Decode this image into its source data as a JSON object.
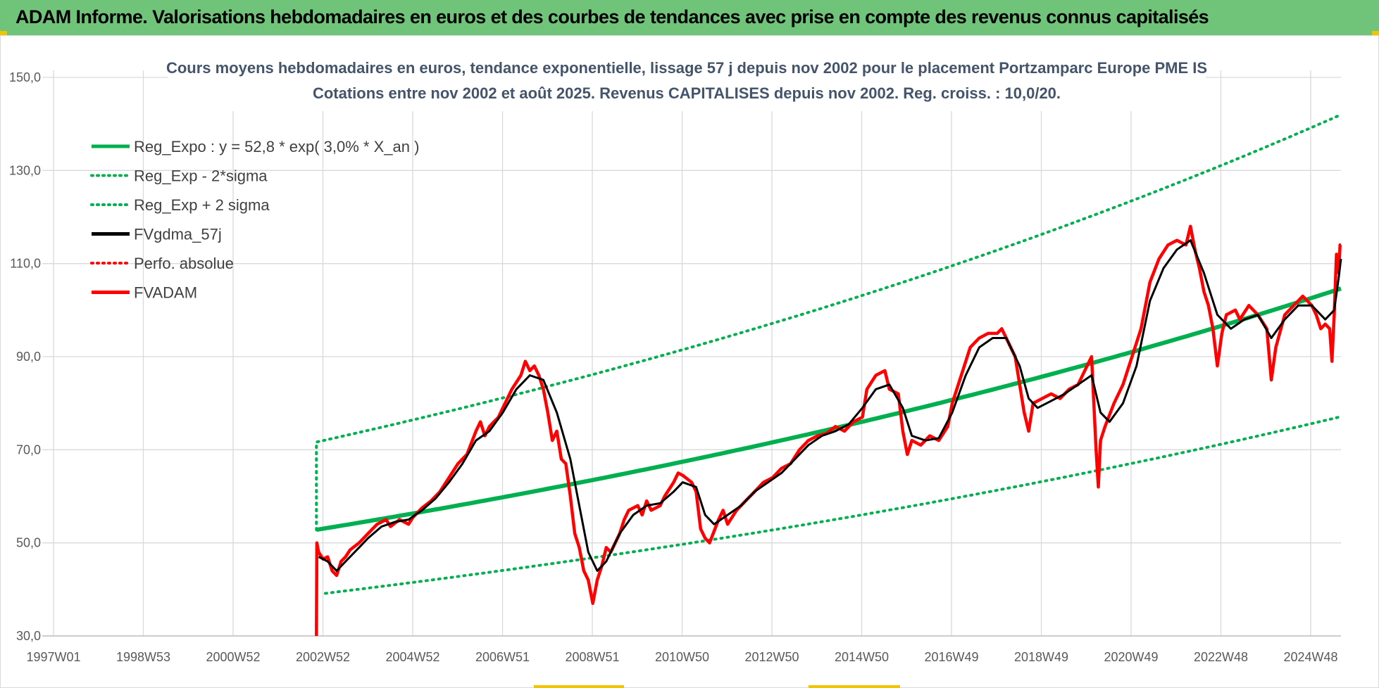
{
  "header": {
    "title": "ADAM Informe. Valorisations hebdomadaires en euros et des courbes de tendances avec prise en compte des revenus connus capitalisés"
  },
  "colors": {
    "banner": "#70c47a",
    "reg_expo": "#00b050",
    "fvgdma": "#000000",
    "fvadam": "#ff0000",
    "perfo": "#ff0000",
    "grid": "#d9d9d9"
  },
  "chart_data": {
    "type": "line",
    "title": [
      "Cours moyens hebdomadaires en euros, tendance exponentielle, lissage 57 j depuis nov 2002  pour le placement Portzamparc Europe PME IS",
      "Cotations entre nov 2002 et août 2025.  Revenus CAPITALISES depuis nov 2002. Reg. croiss. : 10,0/20."
    ],
    "x_tick_labels": [
      "1997W01",
      "1998W53",
      "2000W52",
      "2002W52",
      "2004W52",
      "2006W51",
      "2008W51",
      "2010W50",
      "2012W50",
      "2014W50",
      "2016W49",
      "2018W49",
      "2020W49",
      "2022W48",
      "2024W48"
    ],
    "x_range": [
      1997.0,
      2025.65
    ],
    "y_tick_labels": [
      "30,0",
      "50,0",
      "70,0",
      "90,0",
      "110,0",
      "130,0",
      "150,0"
    ],
    "ylim": [
      30,
      150
    ],
    "grid": true,
    "legend_position": "top-left",
    "legend": [
      {
        "label": "Reg_Expo : y = 52,8 * exp( 3,0% *  X_an )",
        "color": "#00b050",
        "style": "solid"
      },
      {
        "label": "Reg_Exp - 2*sigma",
        "color": "#00b050",
        "style": "dotted"
      },
      {
        "label": "Reg_Exp + 2 sigma",
        "color": "#00b050",
        "style": "dotted"
      },
      {
        "label": "FVgdma_57j",
        "color": "#000000",
        "style": "solid"
      },
      {
        "label": "Perfo. absolue",
        "color": "#ff0000",
        "style": "dotted"
      },
      {
        "label": "FVADAM",
        "color": "#ff0000",
        "style": "solid"
      }
    ],
    "series": [
      {
        "name": "FVADAM",
        "points": [
          [
            2002.85,
            30
          ],
          [
            2002.86,
            50
          ],
          [
            2002.9,
            48
          ],
          [
            2003.0,
            46.5
          ],
          [
            2003.1,
            47
          ],
          [
            2003.2,
            44
          ],
          [
            2003.3,
            43
          ],
          [
            2003.4,
            46
          ],
          [
            2003.5,
            47
          ],
          [
            2003.6,
            48.5
          ],
          [
            2003.8,
            50
          ],
          [
            2004.0,
            52
          ],
          [
            2004.2,
            54
          ],
          [
            2004.4,
            55
          ],
          [
            2004.5,
            53.5
          ],
          [
            2004.7,
            55
          ],
          [
            2004.9,
            54
          ],
          [
            2005.0,
            55.5
          ],
          [
            2005.2,
            57.5
          ],
          [
            2005.4,
            59
          ],
          [
            2005.6,
            61
          ],
          [
            2005.8,
            64
          ],
          [
            2006.0,
            67
          ],
          [
            2006.2,
            69
          ],
          [
            2006.4,
            74
          ],
          [
            2006.5,
            76
          ],
          [
            2006.6,
            73
          ],
          [
            2006.7,
            75
          ],
          [
            2006.9,
            77
          ],
          [
            2007.0,
            79
          ],
          [
            2007.2,
            83
          ],
          [
            2007.4,
            86
          ],
          [
            2007.5,
            89
          ],
          [
            2007.6,
            87
          ],
          [
            2007.7,
            88
          ],
          [
            2007.8,
            86
          ],
          [
            2007.9,
            83
          ],
          [
            2008.0,
            78
          ],
          [
            2008.1,
            72
          ],
          [
            2008.2,
            74
          ],
          [
            2008.3,
            68
          ],
          [
            2008.4,
            67
          ],
          [
            2008.5,
            60
          ],
          [
            2008.6,
            52
          ],
          [
            2008.7,
            49
          ],
          [
            2008.8,
            44
          ],
          [
            2008.9,
            42
          ],
          [
            2009.0,
            37
          ],
          [
            2009.1,
            42
          ],
          [
            2009.2,
            45
          ],
          [
            2009.3,
            49
          ],
          [
            2009.4,
            48
          ],
          [
            2009.6,
            52
          ],
          [
            2009.7,
            55
          ],
          [
            2009.8,
            57
          ],
          [
            2010.0,
            58
          ],
          [
            2010.1,
            56
          ],
          [
            2010.2,
            59
          ],
          [
            2010.3,
            57
          ],
          [
            2010.5,
            58
          ],
          [
            2010.6,
            60
          ],
          [
            2010.8,
            63
          ],
          [
            2010.9,
            65
          ],
          [
            2011.0,
            64.5
          ],
          [
            2011.2,
            63
          ],
          [
            2011.3,
            61
          ],
          [
            2011.4,
            53
          ],
          [
            2011.5,
            51
          ],
          [
            2011.6,
            50
          ],
          [
            2011.8,
            55
          ],
          [
            2011.9,
            57
          ],
          [
            2012.0,
            54
          ],
          [
            2012.2,
            57
          ],
          [
            2012.4,
            59
          ],
          [
            2012.6,
            61
          ],
          [
            2012.8,
            63
          ],
          [
            2013.0,
            64
          ],
          [
            2013.2,
            66
          ],
          [
            2013.4,
            67
          ],
          [
            2013.6,
            70
          ],
          [
            2013.8,
            72
          ],
          [
            2014.0,
            73
          ],
          [
            2014.2,
            73.5
          ],
          [
            2014.4,
            75
          ],
          [
            2014.6,
            74
          ],
          [
            2014.8,
            76
          ],
          [
            2015.0,
            77
          ],
          [
            2015.1,
            83
          ],
          [
            2015.3,
            86
          ],
          [
            2015.5,
            87
          ],
          [
            2015.6,
            83
          ],
          [
            2015.8,
            82
          ],
          [
            2015.9,
            74
          ],
          [
            2016.0,
            69
          ],
          [
            2016.1,
            72
          ],
          [
            2016.3,
            71
          ],
          [
            2016.5,
            73
          ],
          [
            2016.7,
            72
          ],
          [
            2016.9,
            75
          ],
          [
            2017.0,
            80
          ],
          [
            2017.2,
            86
          ],
          [
            2017.4,
            92
          ],
          [
            2017.6,
            94
          ],
          [
            2017.8,
            95
          ],
          [
            2018.0,
            95
          ],
          [
            2018.1,
            96
          ],
          [
            2018.2,
            94
          ],
          [
            2018.4,
            90
          ],
          [
            2018.5,
            84
          ],
          [
            2018.6,
            78
          ],
          [
            2018.7,
            74
          ],
          [
            2018.8,
            80
          ],
          [
            2019.0,
            81
          ],
          [
            2019.2,
            82
          ],
          [
            2019.4,
            81
          ],
          [
            2019.6,
            83
          ],
          [
            2019.8,
            84
          ],
          [
            2020.0,
            88
          ],
          [
            2020.1,
            90
          ],
          [
            2020.2,
            70
          ],
          [
            2020.25,
            62
          ],
          [
            2020.3,
            72
          ],
          [
            2020.4,
            75
          ],
          [
            2020.6,
            80
          ],
          [
            2020.8,
            84
          ],
          [
            2021.0,
            90
          ],
          [
            2021.2,
            96
          ],
          [
            2021.4,
            106
          ],
          [
            2021.6,
            111
          ],
          [
            2021.8,
            114
          ],
          [
            2022.0,
            115
          ],
          [
            2022.2,
            114
          ],
          [
            2022.3,
            118
          ],
          [
            2022.4,
            113
          ],
          [
            2022.5,
            109
          ],
          [
            2022.6,
            104
          ],
          [
            2022.7,
            101
          ],
          [
            2022.8,
            96
          ],
          [
            2022.9,
            88
          ],
          [
            2023.0,
            95
          ],
          [
            2023.1,
            99
          ],
          [
            2023.3,
            100
          ],
          [
            2023.4,
            98
          ],
          [
            2023.6,
            101
          ],
          [
            2023.8,
            99
          ],
          [
            2024.0,
            96
          ],
          [
            2024.1,
            85
          ],
          [
            2024.2,
            92
          ],
          [
            2024.4,
            99
          ],
          [
            2024.6,
            101
          ],
          [
            2024.8,
            103
          ],
          [
            2025.0,
            101
          ],
          [
            2025.1,
            99
          ],
          [
            2025.2,
            96
          ],
          [
            2025.3,
            97
          ],
          [
            2025.4,
            96
          ],
          [
            2025.45,
            89
          ],
          [
            2025.5,
            99
          ],
          [
            2025.55,
            112
          ],
          [
            2025.6,
            108
          ],
          [
            2025.63,
            114
          ],
          [
            2025.65,
            114
          ]
        ]
      },
      {
        "name": "FVgdma_57j",
        "points": [
          [
            2002.9,
            47
          ],
          [
            2003.1,
            46
          ],
          [
            2003.3,
            44
          ],
          [
            2003.5,
            46
          ],
          [
            2003.8,
            49
          ],
          [
            2004.0,
            51
          ],
          [
            2004.3,
            53.5
          ],
          [
            2004.6,
            54.5
          ],
          [
            2004.9,
            55
          ],
          [
            2005.2,
            57
          ],
          [
            2005.5,
            59.5
          ],
          [
            2005.8,
            63
          ],
          [
            2006.1,
            67
          ],
          [
            2006.4,
            72
          ],
          [
            2006.7,
            74
          ],
          [
            2007.0,
            78
          ],
          [
            2007.3,
            83
          ],
          [
            2007.6,
            86
          ],
          [
            2007.9,
            85
          ],
          [
            2008.2,
            78
          ],
          [
            2008.5,
            68
          ],
          [
            2008.7,
            58
          ],
          [
            2008.9,
            48
          ],
          [
            2009.1,
            44
          ],
          [
            2009.3,
            46
          ],
          [
            2009.6,
            52
          ],
          [
            2009.9,
            56
          ],
          [
            2010.2,
            58
          ],
          [
            2010.5,
            58.5
          ],
          [
            2010.8,
            61
          ],
          [
            2011.0,
            63
          ],
          [
            2011.3,
            62
          ],
          [
            2011.5,
            56
          ],
          [
            2011.7,
            54
          ],
          [
            2012.0,
            56
          ],
          [
            2012.3,
            58
          ],
          [
            2012.6,
            61
          ],
          [
            2012.9,
            63
          ],
          [
            2013.2,
            65
          ],
          [
            2013.5,
            68
          ],
          [
            2013.8,
            71
          ],
          [
            2014.1,
            73
          ],
          [
            2014.4,
            74
          ],
          [
            2014.7,
            75.5
          ],
          [
            2015.0,
            79
          ],
          [
            2015.3,
            83
          ],
          [
            2015.6,
            84
          ],
          [
            2015.9,
            79
          ],
          [
            2016.1,
            73
          ],
          [
            2016.4,
            72
          ],
          [
            2016.7,
            72.5
          ],
          [
            2017.0,
            78
          ],
          [
            2017.3,
            86
          ],
          [
            2017.6,
            92
          ],
          [
            2017.9,
            94
          ],
          [
            2018.2,
            94
          ],
          [
            2018.5,
            88
          ],
          [
            2018.7,
            81
          ],
          [
            2018.9,
            79
          ],
          [
            2019.2,
            80.5
          ],
          [
            2019.5,
            82
          ],
          [
            2019.8,
            84
          ],
          [
            2020.1,
            86
          ],
          [
            2020.3,
            78
          ],
          [
            2020.5,
            76
          ],
          [
            2020.8,
            80
          ],
          [
            2021.1,
            88
          ],
          [
            2021.4,
            102
          ],
          [
            2021.7,
            109
          ],
          [
            2022.0,
            113
          ],
          [
            2022.3,
            115
          ],
          [
            2022.6,
            108
          ],
          [
            2022.9,
            99
          ],
          [
            2023.2,
            96
          ],
          [
            2023.5,
            98
          ],
          [
            2023.8,
            99
          ],
          [
            2024.1,
            94
          ],
          [
            2024.4,
            98
          ],
          [
            2024.7,
            101
          ],
          [
            2025.0,
            101
          ],
          [
            2025.3,
            98
          ],
          [
            2025.5,
            100
          ],
          [
            2025.6,
            107
          ],
          [
            2025.65,
            111
          ]
        ]
      },
      {
        "name": "Reg_Expo",
        "start": 2002.85,
        "end": 2025.65,
        "y0": 52.8,
        "rate": 0.03
      },
      {
        "name": "Reg_Exp - 2*sigma",
        "start": 2002.85,
        "end": 2025.65,
        "factor": 0.737
      },
      {
        "name": "Reg_Exp + 2 sigma",
        "start": 2002.85,
        "end": 2025.65,
        "factor": 1.357
      }
    ]
  }
}
